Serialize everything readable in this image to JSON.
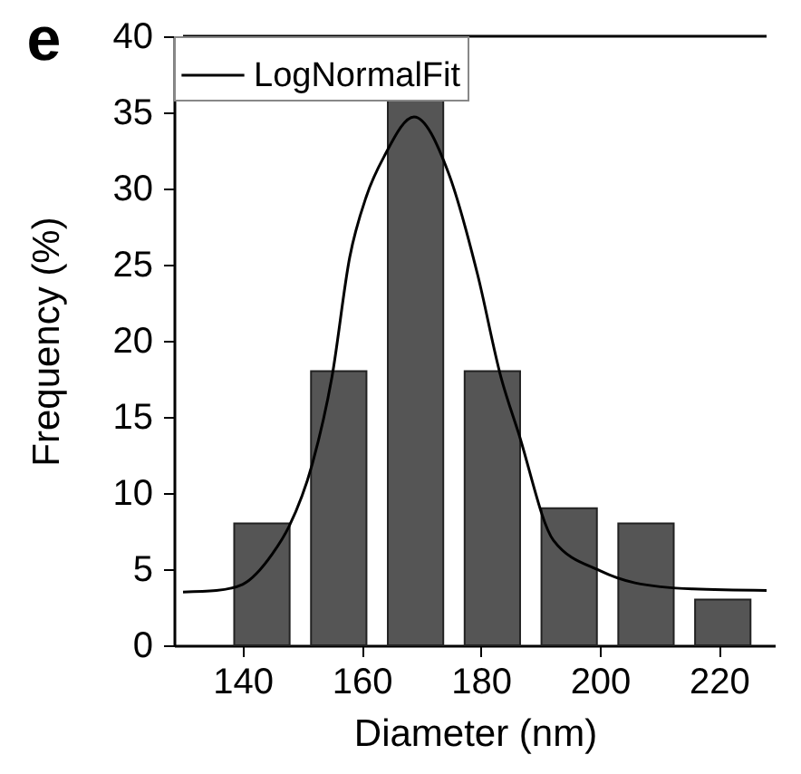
{
  "chart_data": {
    "type": "histogram",
    "title": "e",
    "xlabel": "Diameter (nm)",
    "ylabel": "Frequency (%)",
    "bins": [
      136.8,
      149.7,
      162.6,
      175.5,
      188.4,
      201.3,
      214.2,
      227.1
    ],
    "values": [
      8,
      18,
      36,
      18,
      9,
      8,
      3
    ],
    "color": "#555555",
    "series": [
      {
        "name": "LogNormalFit",
        "type": "line",
        "color": "#000000",
        "x": [
          130,
          135.6,
          140,
          145,
          147.8,
          151.7,
          155,
          158,
          160.8,
          163.9,
          168.8,
          174.6,
          179.5,
          183.4,
          186.3,
          192.2,
          200,
          205.9,
          215.6,
          228
        ],
        "values": [
          3.5,
          3.6,
          4.0,
          6.0,
          7.8,
          11.9,
          17.6,
          25.5,
          29.5,
          32.2,
          34.7,
          31,
          24.3,
          17.6,
          14,
          6.9,
          4.9,
          4.1,
          3.7,
          3.6
        ]
      }
    ],
    "xlim": [
      130,
      228
    ],
    "ylim": [
      0,
      40
    ],
    "xticks": [
      140,
      160,
      180,
      200,
      220
    ],
    "yticks": [
      0,
      5,
      10,
      15,
      20,
      25,
      30,
      35,
      40
    ],
    "legend": "top left"
  }
}
